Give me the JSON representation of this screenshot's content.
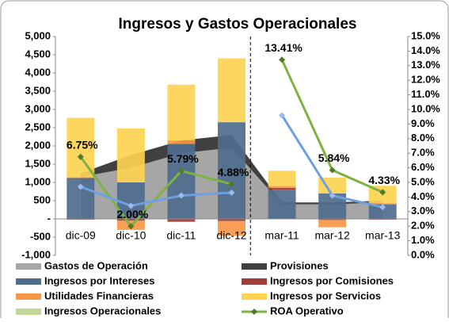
{
  "chart_data": {
    "type": "bar",
    "title": "Ingresos y Gastos Operacionales",
    "categories": [
      "dic-09",
      "dic-10",
      "dic-11",
      "dic-12",
      "mar-11",
      "mar-12",
      "mar-13"
    ],
    "divider_before": 4,
    "ylim": [
      -1000,
      5000
    ],
    "yticks": [
      {
        "value": -1000,
        "label": "-1,000"
      },
      -500,
      {
        "value": 0,
        "label": "-"
      },
      500,
      {
        "value": 1000,
        "label": "1,000"
      },
      {
        "value": 1500,
        "label": "1,500"
      },
      {
        "value": 2000,
        "label": "2,000"
      },
      {
        "value": 2500,
        "label": "2,500"
      },
      {
        "value": 3000,
        "label": "3,000"
      },
      {
        "value": 3500,
        "label": "3,500"
      },
      {
        "value": 4000,
        "label": "4,000"
      },
      {
        "value": 4500,
        "label": "4,500"
      },
      {
        "value": 5000,
        "label": "5,000"
      }
    ],
    "y2lim": [
      0,
      15
    ],
    "y2ticks": [
      {
        "value": 0,
        "label": "0.0%"
      },
      {
        "value": 1,
        "label": "1.0%"
      },
      {
        "value": 2,
        "label": "2.0%"
      },
      {
        "value": 3,
        "label": "3.0%"
      },
      {
        "value": 4,
        "label": "4.0%"
      },
      {
        "value": 5,
        "label": "5.0%"
      },
      {
        "value": 6,
        "label": "6.0%"
      },
      {
        "value": 7,
        "label": "7.0%"
      },
      {
        "value": 8,
        "label": "8.0%"
      },
      {
        "value": 9,
        "label": "9.0%"
      },
      {
        "value": 10,
        "label": "10.0%"
      },
      {
        "value": 11,
        "label": "11.0%"
      },
      {
        "value": 12,
        "label": "12.0%"
      },
      {
        "value": 13,
        "label": "13.0%"
      },
      {
        "value": 14,
        "label": "14.0%"
      },
      {
        "value": 15,
        "label": "15.0%"
      }
    ],
    "series": [
      {
        "name": "Gastos de Operación",
        "kind": "area",
        "color": "#a6a6a6",
        "values": [
          1150,
          1400,
          1800,
          1950,
          400,
          400,
          450
        ]
      },
      {
        "name": "Provisiones",
        "kind": "area",
        "color": "#404040",
        "values": [
          100,
          350,
          350,
          350,
          50,
          50,
          50
        ]
      },
      {
        "name": "Ingresos por Intereses",
        "kind": "bar",
        "color": "#4f6b8e",
        "values": [
          1120,
          1000,
          2050,
          2650,
          800,
          700,
          400
        ]
      },
      {
        "name": "Ingresos por Comisiones",
        "kind": "bar",
        "color": "#a23b37",
        "values": [
          -20,
          -50,
          -80,
          -60,
          50,
          -30,
          -20
        ]
      },
      {
        "name": "Utilidades Financieras",
        "kind": "bar",
        "color": "#f79646",
        "values": [
          20,
          -250,
          100,
          -400,
          50,
          -200,
          30
        ]
      },
      {
        "name": "Ingresos por Servicios",
        "kind": "bar",
        "color": "#fdd251",
        "values": [
          1630,
          1480,
          1530,
          1750,
          420,
          430,
          480
        ]
      },
      {
        "name": "Ingresos Operacionales",
        "kind": "bar",
        "color": "#c3d69b",
        "values": [
          null,
          null,
          null,
          null,
          null,
          null,
          null
        ]
      },
      {
        "name": "ROA Operativo",
        "kind": "line",
        "axis": "y2",
        "color": "#7cb342",
        "marker": "#4f7a28",
        "values": [
          6.75,
          2.0,
          5.79,
          4.88,
          13.41,
          5.84,
          4.33
        ],
        "value_labels": [
          "6.75%",
          "2.00%",
          "5.79%",
          "4.88%",
          "13.41%",
          "5.84%",
          "4.33%"
        ]
      },
      {
        "kind": "line",
        "axis": "y2",
        "color": "#6f9fe0",
        "marker": "#9bbcf0",
        "values": [
          4.7,
          3.4,
          4.1,
          4.3,
          9.6,
          4.1,
          3.3
        ]
      }
    ]
  }
}
